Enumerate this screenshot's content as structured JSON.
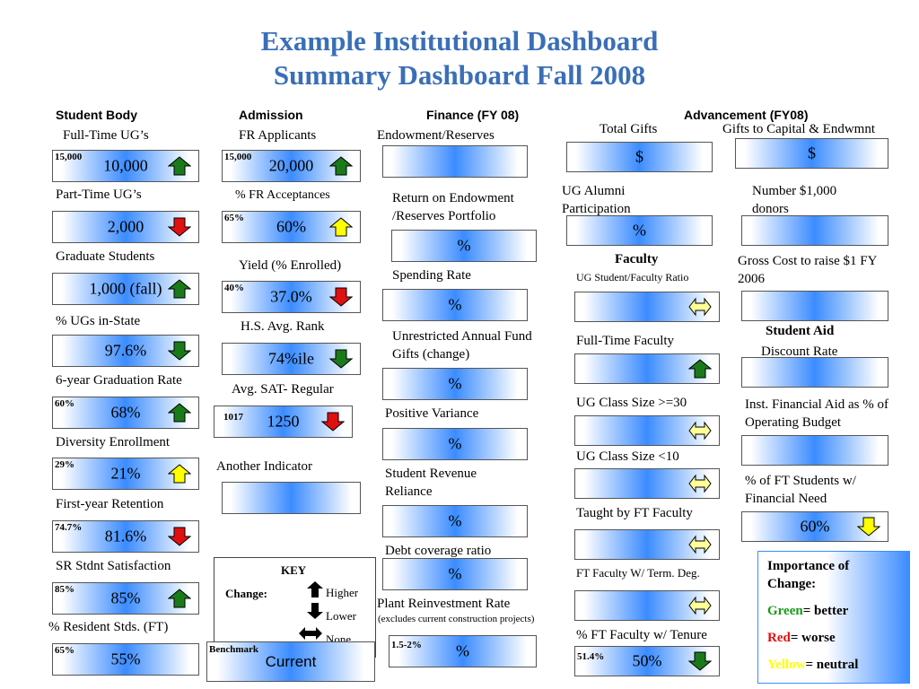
{
  "title": {
    "line1": "Example Institutional Dashboard",
    "line2": "Summary Dashboard Fall 2008"
  },
  "headers": {
    "student_body": "Student Body",
    "admission": "Admission",
    "finance": "Finance (FY 08)",
    "advancement": "Advancement (FY08)"
  },
  "student_body": {
    "fulltime": {
      "label": "Full-Time UG’s",
      "benchmark": "15,000",
      "value": "10,000",
      "arrow": "up-green"
    },
    "parttime": {
      "label": "Part-Time UG’s",
      "value": "2,000",
      "arrow": "down-red"
    },
    "graduate": {
      "label": "Graduate Students",
      "value": "1,000 (fall)",
      "arrow": "up-green"
    },
    "instate": {
      "label": "% UGs in-State",
      "value": "97.6%",
      "arrow": "down-green"
    },
    "grad_rate": {
      "label": "6-year Graduation Rate",
      "benchmark": "60%",
      "value": "68%",
      "arrow": "up-green"
    },
    "diversity": {
      "label": "Diversity Enrollment",
      "benchmark": "29%",
      "value": "21%",
      "arrow": "up-yellow"
    },
    "retention": {
      "label": "First-year Retention",
      "benchmark": "74.7%",
      "value": "81.6%",
      "arrow": "down-red"
    },
    "satisfaction": {
      "label": "SR Stdnt Satisfaction",
      "benchmark": "85%",
      "value": "85%",
      "arrow": "up-green"
    },
    "resident": {
      "label": "% Resident Stds. (FT)",
      "benchmark": "65%",
      "value": "55%"
    }
  },
  "admission": {
    "applicants": {
      "label": "FR  Applicants",
      "benchmark": "15,000",
      "value": "20,000",
      "arrow": "up-green"
    },
    "acceptances": {
      "label": "% FR Acceptances",
      "benchmark": "65%",
      "value": "60%",
      "arrow": "up-yellow"
    },
    "yield": {
      "label": "Yield (% Enrolled)",
      "benchmark": "40%",
      "value": "37.0%",
      "arrow": "down-red"
    },
    "rank": {
      "label": "H.S. Avg. Rank",
      "value": "74%ile",
      "arrow": "down-green"
    },
    "sat": {
      "label": "Avg. SAT- Regular",
      "benchmark": "1017",
      "value": "1250",
      "arrow": "down-red"
    },
    "another": {
      "label": "Another Indicator",
      "value": ""
    }
  },
  "key": {
    "title": "KEY",
    "change": "Change",
    "higher": "Higher",
    "lower": "Lower",
    "none": "None",
    "benchmark": "Benchmark",
    "current": "Current"
  },
  "finance": {
    "endowment": {
      "label": "Endowment/Reserves",
      "value": ""
    },
    "return": {
      "label": "Return on Endowment /Reserves Portfolio",
      "value": "%"
    },
    "spending": {
      "label": "Spending Rate",
      "value": "%"
    },
    "unrestricted": {
      "label": "Unrestricted Annual Fund Gifts (change)",
      "value": "%"
    },
    "variance": {
      "label": "Positive Variance",
      "value": "%"
    },
    "reliance": {
      "label": "Student Revenue Reliance",
      "value": "%"
    },
    "debt": {
      "label": "Debt coverage ratio",
      "value": "%"
    },
    "plant": {
      "label": "Plant Reinvestment Rate",
      "note": "(excludes current construction projects)",
      "benchmark": "1.5-2%",
      "value": "%"
    }
  },
  "advancement": {
    "total_gifts": {
      "label": "Total Gifts",
      "value": "$"
    },
    "gifts_capital": {
      "label": "Gifts to Capital & Endwmnt",
      "value": "$"
    },
    "alumni": {
      "label": "UG Alumni Participation",
      "value": "%"
    },
    "donors": {
      "label": "Number $1,000 donors",
      "value": ""
    },
    "gross_cost": {
      "label": "Gross Cost to raise $1 FY 2006",
      "value": ""
    },
    "student_aid": {
      "title": "Student Aid",
      "label": "Discount Rate",
      "value": ""
    },
    "inst_aid": {
      "label": "Inst. Financial Aid as % of Operating Budget",
      "value": ""
    },
    "need": {
      "label": "% of FT Students w/ Financial Need",
      "value": "60%",
      "arrow": "down-yellow"
    }
  },
  "faculty": {
    "title": "Faculty",
    "ratio": {
      "label": "UG Student/Faculty Ratio",
      "arrow": "none-yellow"
    },
    "fulltime": {
      "label": "Full-Time Faculty",
      "arrow": "up-green"
    },
    "class30": {
      "label": "UG Class Size >=30",
      "arrow": "none-yellow"
    },
    "class10": {
      "label": "UG Class Size <10",
      "arrow": "none-yellow"
    },
    "taught": {
      "label": "Taught by FT Faculty",
      "arrow": "none-yellow"
    },
    "termdeg": {
      "label": "FT Faculty W/ Term. Deg.",
      "arrow": "none-yellow"
    },
    "tenure": {
      "label": "% FT Faculty w/ Tenure",
      "benchmark": "51.4%",
      "value": "50%",
      "arrow": "down-green"
    }
  },
  "importance": {
    "title": "Importance of Change:",
    "green_word": "Green",
    "green_rest": "= better",
    "red_word": "Red",
    "red_rest": "= worse",
    "yellow_word": "Yellow",
    "yellow_rest": "= neutral"
  },
  "colors": {
    "title": "#3a6fb7",
    "green": "#1a7a1a",
    "red": "#e01010",
    "yellow": "#ffff00",
    "box_mid": "#3b8cff"
  }
}
